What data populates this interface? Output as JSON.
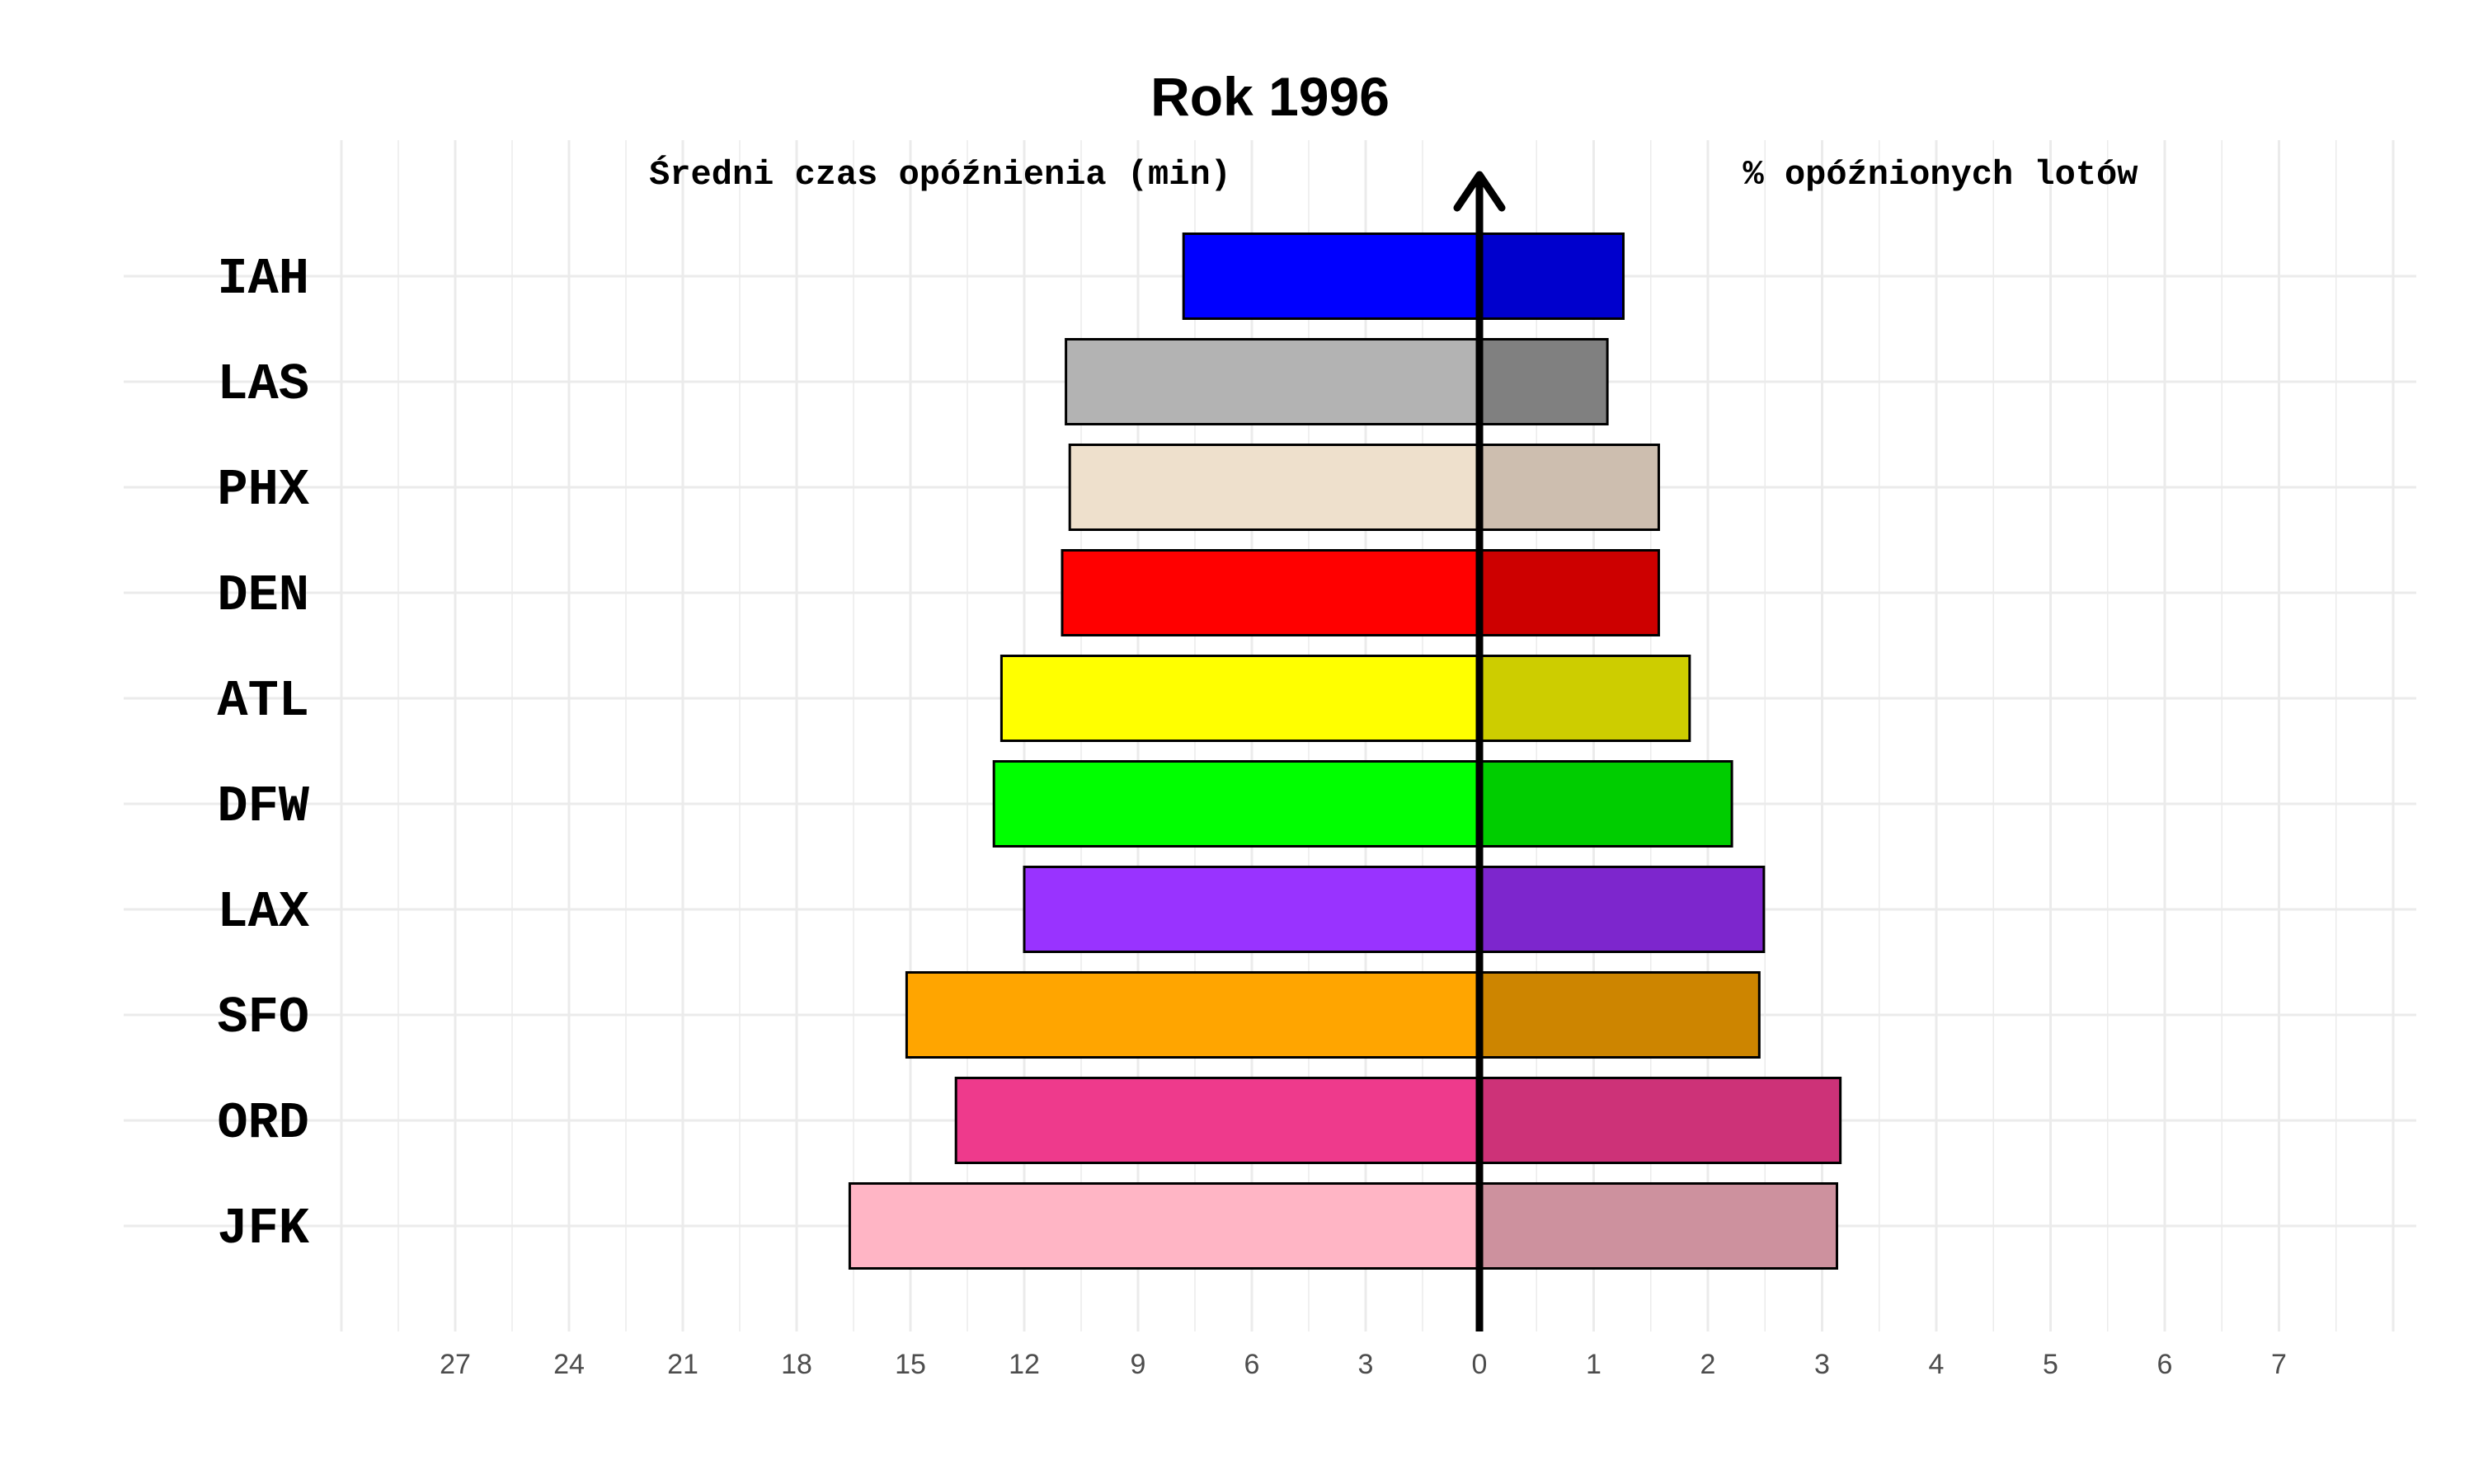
{
  "chart_data": {
    "type": "bar",
    "title": "Rok 1996",
    "left_label": "Średni czas opóźnienia (min)",
    "right_label": "% opóźnionych lotów",
    "categories": [
      "IAH",
      "LAS",
      "PHX",
      "DEN",
      "ATL",
      "DFW",
      "LAX",
      "SFO",
      "ORD",
      "JFK"
    ],
    "series": [
      {
        "side": "left",
        "values": [
          7.8,
          10.9,
          10.8,
          11.0,
          12.6,
          12.8,
          12.0,
          15.1,
          13.8,
          16.6
        ],
        "colors": [
          "#0000FF",
          "#B3B3B3",
          "#EEE0CC",
          "#FF0000",
          "#FFFF00",
          "#00FF00",
          "#9933FF",
          "#FFA500",
          "#EE3A8C",
          "#FFB5C5"
        ]
      },
      {
        "side": "right",
        "values": [
          1.26,
          1.12,
          1.57,
          1.57,
          1.84,
          2.21,
          2.49,
          2.45,
          3.16,
          3.13
        ],
        "colors": [
          "#0000CD",
          "#808080",
          "#CDBEAF",
          "#CD0000",
          "#CDCD00",
          "#00CD00",
          "#7D26CD",
          "#CD8500",
          "#CD3278",
          "#CD919E"
        ]
      }
    ],
    "left_ticks": [
      27,
      24,
      21,
      18,
      15,
      12,
      9,
      6,
      3,
      0
    ],
    "right_ticks": [
      1,
      2,
      3,
      4,
      5,
      6,
      7
    ],
    "left_xlim": [
      0,
      30
    ],
    "right_xlim": [
      0,
      8
    ],
    "grid": true,
    "center_arrow": true
  }
}
